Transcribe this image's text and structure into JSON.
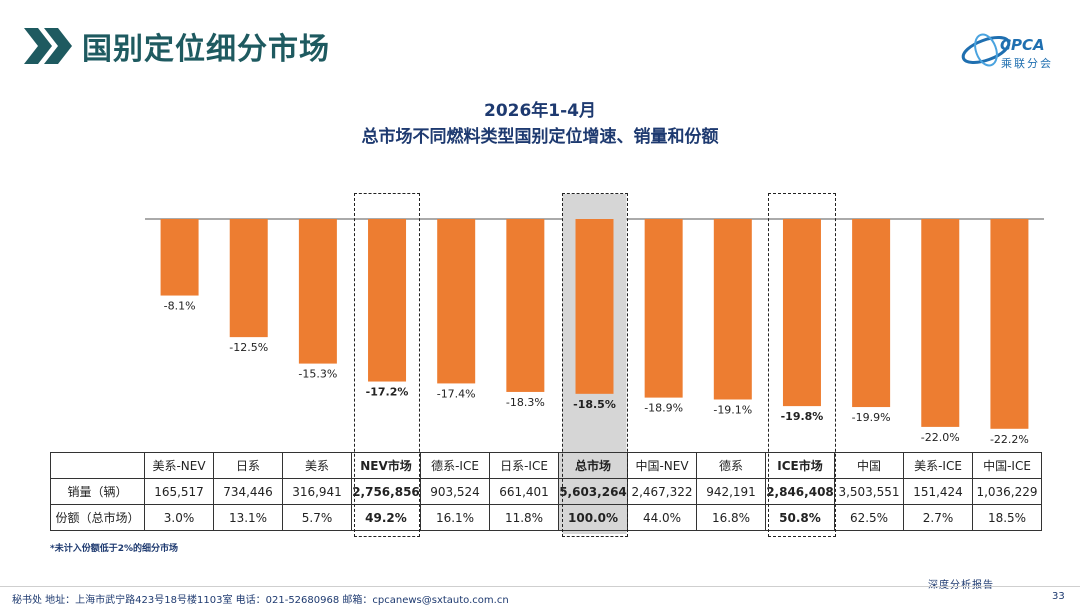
{
  "header": {
    "page_title": "国别定位细分市场",
    "logo_text": "CPCA",
    "logo_sub": "乘联分会"
  },
  "chart_data": {
    "type": "bar",
    "title": "2026年1-4月",
    "subtitle": "总市场不同燃料类型国别定位增速、销量和份额",
    "categories": [
      "美系-NEV",
      "日系",
      "美系",
      "NEV市场",
      "德系-ICE",
      "日系-ICE",
      "总市场",
      "中国-NEV",
      "德系",
      "ICE市场",
      "中国",
      "美系-ICE",
      "中国-ICE"
    ],
    "values": [
      -8.1,
      -12.5,
      -15.3,
      -17.2,
      -17.4,
      -18.3,
      -18.5,
      -18.9,
      -19.1,
      -19.8,
      -19.9,
      -22.0,
      -22.2
    ],
    "value_labels": [
      "-8.1%",
      "-12.5%",
      "-15.3%",
      "-17.2%",
      "-17.4%",
      "-18.3%",
      "-18.5%",
      "-18.9%",
      "-19.1%",
      "-19.8%",
      "-19.9%",
      "-22.0%",
      "-22.2%"
    ],
    "highlighted": [
      "NEV市场",
      "总市场",
      "ICE市场"
    ],
    "bar_color": "#ed7d31",
    "ylim": [
      -25,
      0
    ],
    "grid": false
  },
  "table": {
    "header": [
      "美系-NEV",
      "日系",
      "美系",
      "NEV市场",
      "德系-ICE",
      "日系-ICE",
      "总市场",
      "中国-NEV",
      "德系",
      "ICE市场",
      "中国",
      "美系-ICE",
      "中国-ICE"
    ],
    "rows": [
      {
        "label": "销量（辆）",
        "cells": [
          "165,517",
          "734,446",
          "316,941",
          "2,756,856",
          "903,524",
          "661,401",
          "5,603,264",
          "2,467,322",
          "942,191",
          "2,846,408",
          "3,503,551",
          "151,424",
          "1,036,229"
        ]
      },
      {
        "label": "份额（总市场）",
        "cells": [
          "3.0%",
          "13.1%",
          "5.7%",
          "49.2%",
          "16.1%",
          "11.8%",
          "100.0%",
          "44.0%",
          "16.8%",
          "50.8%",
          "62.5%",
          "2.7%",
          "18.5%"
        ]
      }
    ]
  },
  "note": "*未计入份额低于2%的细分市场",
  "footer": {
    "address": "秘书处   地址：上海市武宁路423号18号楼1103室   电话：021-52680968   邮箱：cpcanews@sxtauto.com.cn",
    "report_tag": "深度分析报告",
    "page_number": "33"
  },
  "colors": {
    "title": "#1e5a60",
    "accent": "#ed7d31",
    "navy": "#1e3a70",
    "shade": "#d6d6d6"
  }
}
